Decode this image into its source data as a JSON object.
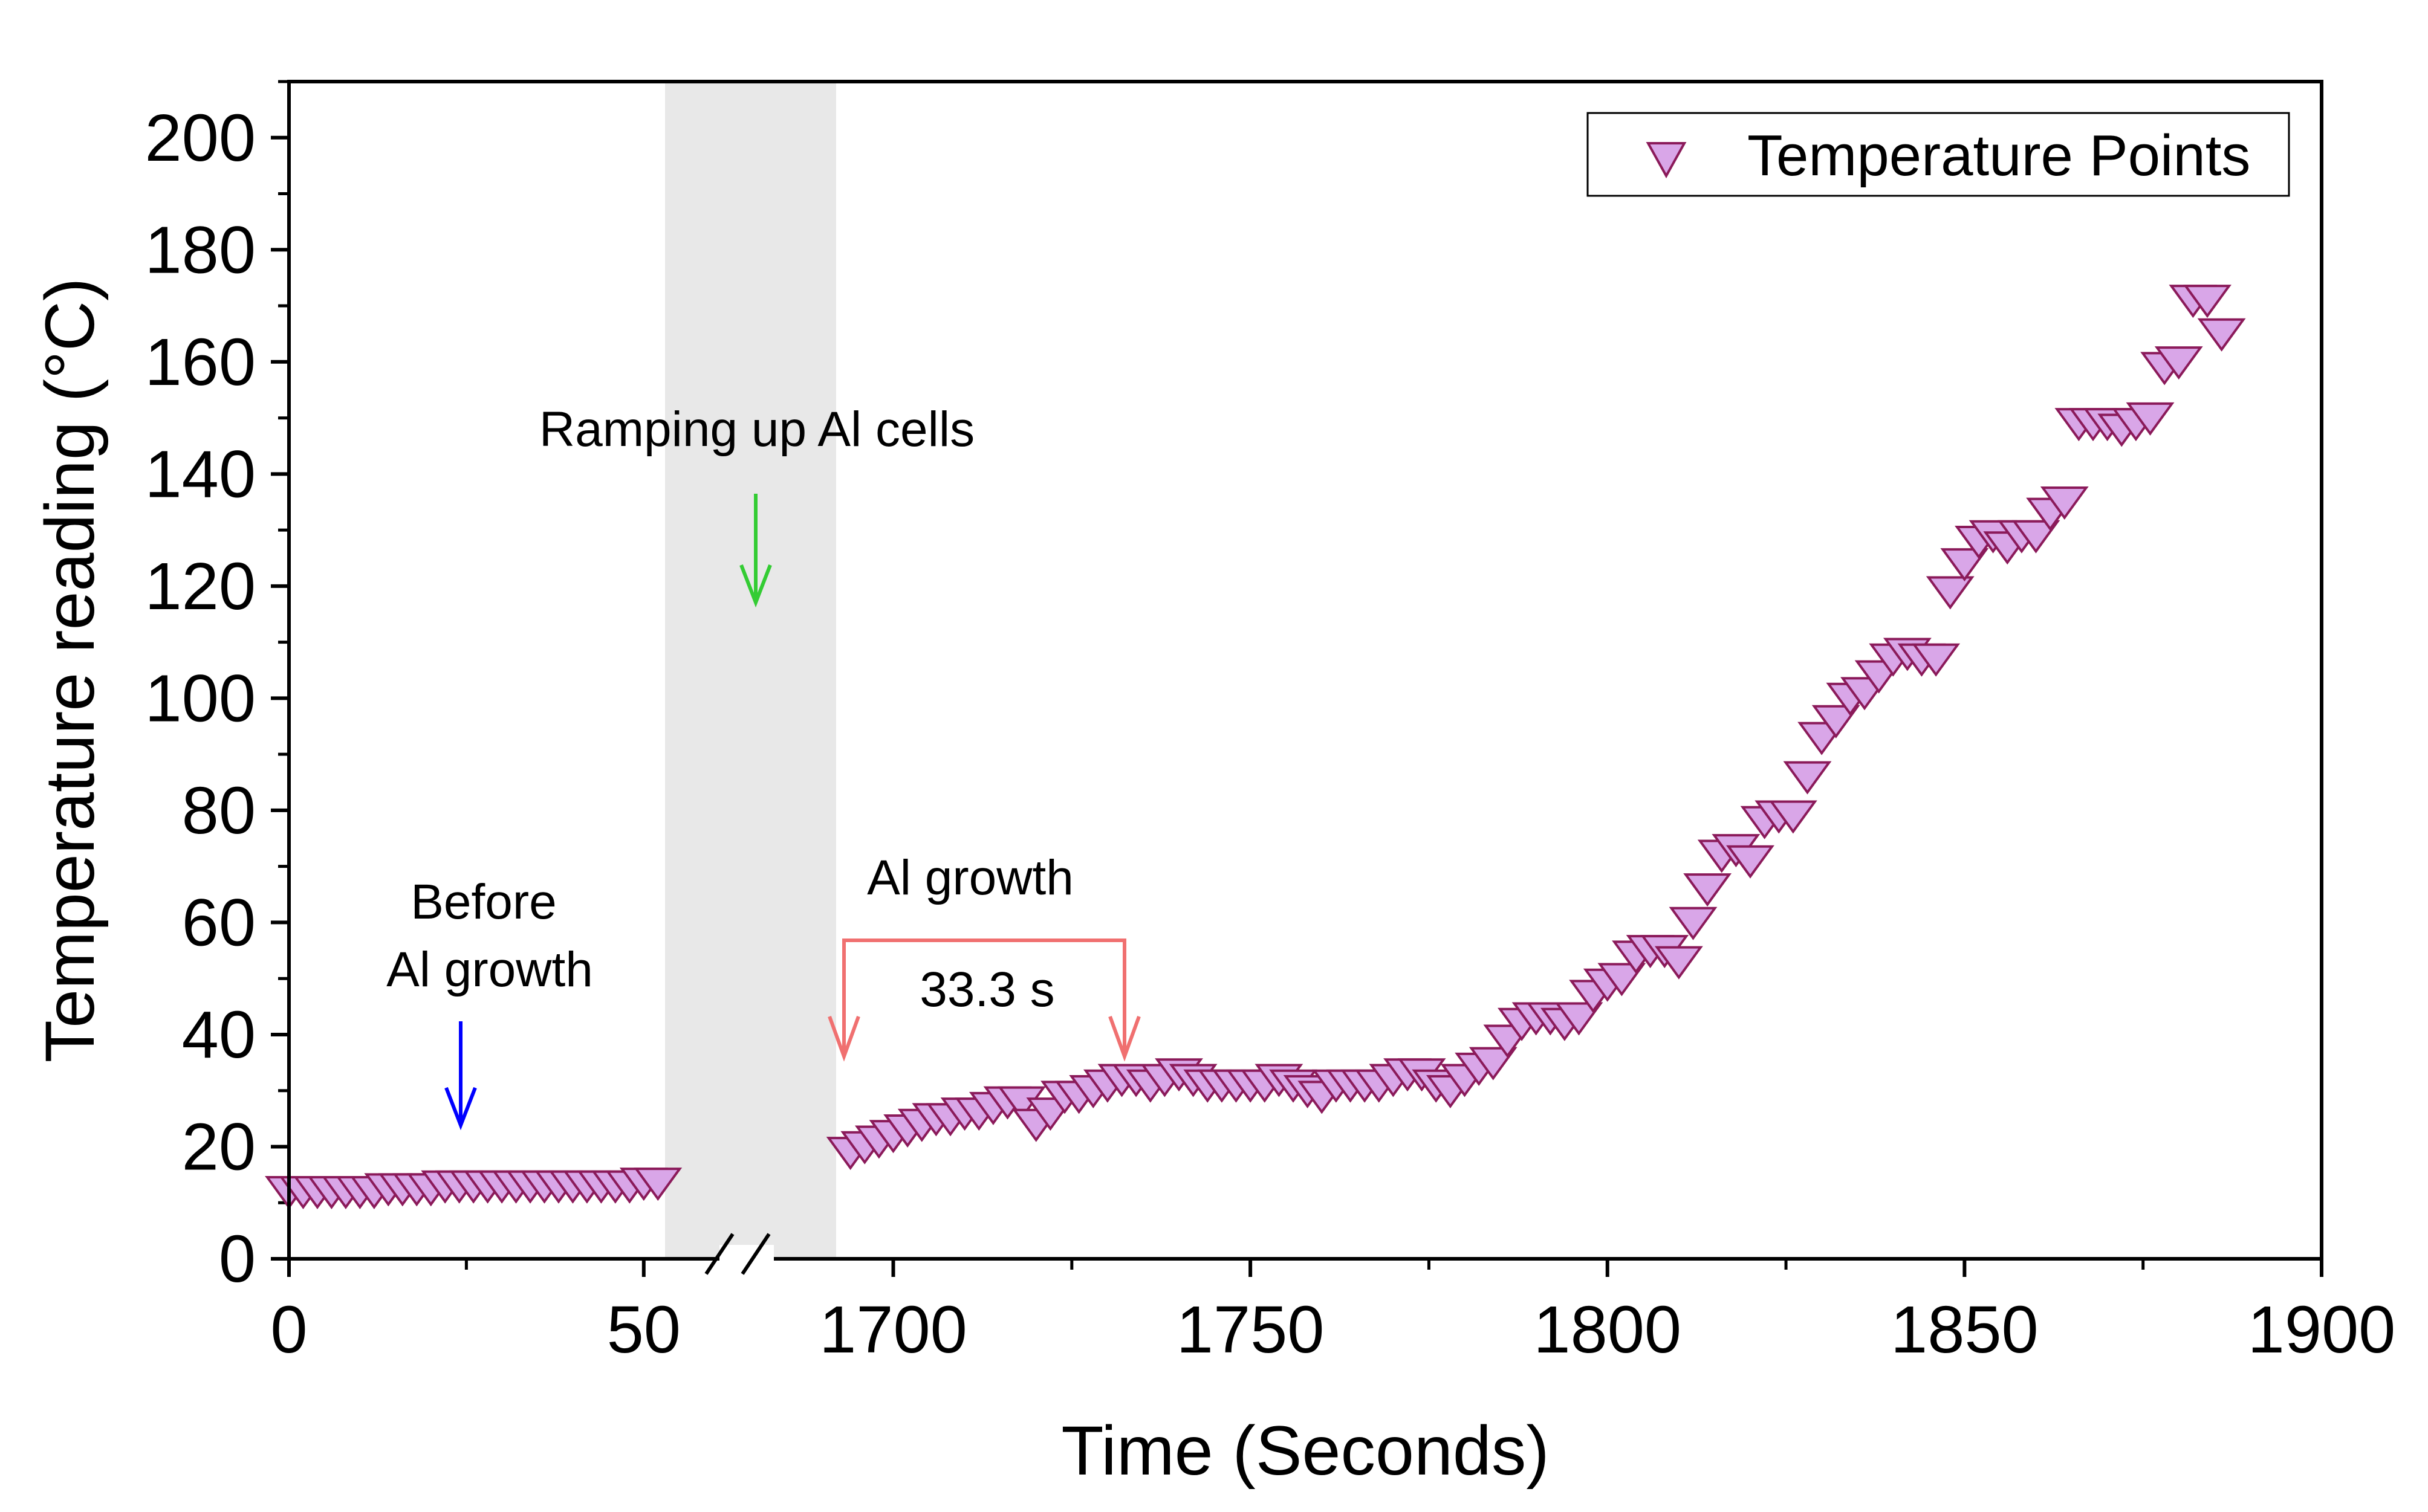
{
  "chart_data": {
    "type": "scatter",
    "title": "",
    "xlabel": "Time (Seconds)",
    "ylabel": "Temperature reading (°C)",
    "x_break": {
      "left_range": [
        0,
        53
      ],
      "right_range": [
        1692,
        1900
      ]
    },
    "ylim": [
      0,
      210
    ],
    "x_ticks_left": [
      0,
      50
    ],
    "x_ticks_right": [
      1700,
      1750,
      1800,
      1850,
      1900
    ],
    "x_tick_labels": [
      "0",
      "50",
      "1700",
      "1750",
      "1800",
      "1850",
      "1900"
    ],
    "y_ticks": [
      0,
      20,
      40,
      60,
      80,
      100,
      120,
      140,
      160,
      180,
      200
    ],
    "y_tick_labels": [
      "0",
      "20",
      "40",
      "60",
      "80",
      "100",
      "120",
      "140",
      "160",
      "180",
      "200"
    ],
    "legend": {
      "label": "Temperature Points",
      "position": "top-right"
    },
    "shaded_region": {
      "label": "Ramping up Al cells",
      "color": "#e8e8e8"
    },
    "annotations": {
      "before_line1": "Before",
      "before_line2": "Al growth",
      "ramping": "Ramping up Al cells",
      "growth": "Al growth",
      "duration": "33.3 s"
    },
    "colors": {
      "marker_fill": "#d9a6e8",
      "marker_edge": "#8b1a5a",
      "before_arrow": "#0000ff",
      "ramping_arrow": "#33cc33",
      "growth_arrow": "#f07070",
      "shade": "#e8e8e8"
    },
    "series": [
      {
        "name": "Temperature Points",
        "segments": [
          {
            "axis": "left",
            "x": [
              0,
              2,
              4,
              6,
              8,
              10,
              12,
              14,
              16,
              18,
              20,
              22,
              24,
              26,
              28,
              30,
              32,
              34,
              36,
              38,
              40,
              42,
              44,
              46,
              48,
              50,
              52
            ],
            "y": [
              13,
              13,
              13,
              13,
              13,
              13,
              13,
              13.5,
              13.5,
              13.5,
              13.5,
              14,
              14,
              14,
              14,
              14,
              14,
              14,
              14,
              14,
              14,
              14,
              14,
              14,
              14,
              14.5,
              14.5
            ]
          },
          {
            "axis": "right",
            "x": [
              1694,
              1696,
              1698,
              1700,
              1702,
              1704,
              1706,
              1708,
              1710,
              1712,
              1714,
              1716,
              1718,
              1720,
              1722,
              1724,
              1726,
              1728,
              1730,
              1732,
              1734,
              1736,
              1738,
              1740,
              1742,
              1744,
              1746,
              1748,
              1750,
              1752,
              1754,
              1756,
              1758,
              1760,
              1762,
              1764,
              1766,
              1768,
              1770,
              1772,
              1774,
              1776,
              1778,
              1780,
              1782,
              1784,
              1786,
              1788,
              1790,
              1792,
              1794,
              1796,
              1798,
              1800,
              1802,
              1804,
              1806,
              1808,
              1810,
              1812,
              1814,
              1816,
              1818,
              1820,
              1822,
              1824,
              1826,
              1828,
              1830,
              1832,
              1834,
              1836,
              1838,
              1840,
              1842,
              1844,
              1846,
              1848,
              1850,
              1852,
              1854,
              1856,
              1858,
              1860,
              1862,
              1864,
              1866,
              1868,
              1870,
              1872,
              1874,
              1876,
              1878,
              1880,
              1882,
              1884,
              1886
            ],
            "y": [
              20,
              21,
              22,
              23,
              24,
              25,
              26,
              26,
              27,
              27,
              28,
              29,
              29,
              25,
              27,
              30,
              30,
              31,
              32,
              33,
              33,
              32,
              33,
              34,
              33,
              32,
              32,
              32,
              32,
              32,
              33,
              32,
              31,
              30,
              32,
              32,
              32,
              32,
              33,
              34,
              34,
              32,
              31,
              33,
              35,
              36,
              40,
              43,
              44,
              44,
              43,
              44,
              48,
              50,
              51,
              55,
              56,
              56,
              54,
              61,
              67,
              73,
              74,
              72,
              79,
              80,
              80,
              87,
              94,
              97,
              101,
              102,
              105,
              108,
              109,
              108,
              108,
              120,
              125,
              129,
              130,
              128,
              130,
              130,
              134,
              136,
              150,
              150,
              150,
              149,
              150,
              151,
              160,
              161,
              172,
              172,
              166
            ]
          }
        ]
      }
    ]
  }
}
